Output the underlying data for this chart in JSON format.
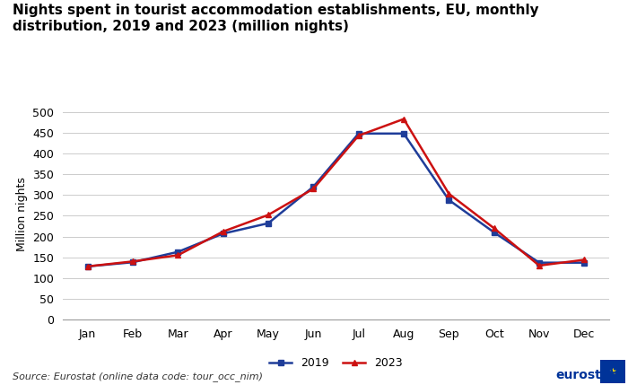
{
  "title": "Nights spent in tourist accommodation establishments, EU, monthly\ndistribution, 2019 and 2023 (million nights)",
  "months": [
    "Jan",
    "Feb",
    "Mar",
    "Apr",
    "May",
    "Jun",
    "Jul",
    "Aug",
    "Sep",
    "Oct",
    "Nov",
    "Dec"
  ],
  "data_2019": [
    128,
    138,
    163,
    207,
    232,
    320,
    448,
    448,
    288,
    210,
    137,
    137
  ],
  "data_2023": [
    128,
    140,
    155,
    212,
    252,
    315,
    443,
    483,
    303,
    220,
    130,
    144
  ],
  "color_2019": "#1F3D99",
  "color_2023": "#CC1111",
  "ylabel": "Million nights",
  "ylim": [
    0,
    510
  ],
  "yticks": [
    0,
    50,
    100,
    150,
    200,
    250,
    300,
    350,
    400,
    450,
    500
  ],
  "source_text": "Source: Eurostat (online data code: tour_occ_nim)",
  "background_color": "#ffffff",
  "grid_color": "#cccccc",
  "legend_2019": "2019",
  "legend_2023": "2023",
  "title_fontsize": 11,
  "axis_fontsize": 9,
  "source_fontsize": 8
}
